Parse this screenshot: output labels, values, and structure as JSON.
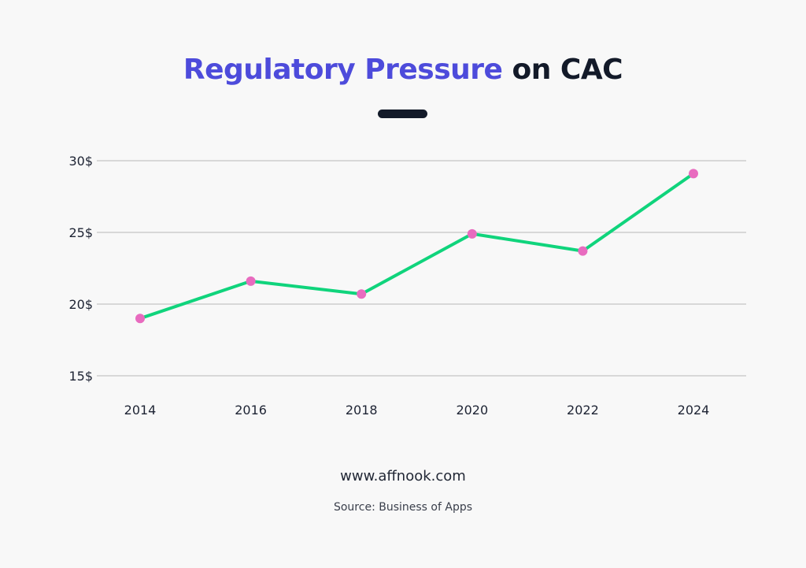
{
  "title": {
    "accent": "Regulatory Pressure",
    "rest": " on CAC"
  },
  "chart_data": {
    "type": "line",
    "x": [
      "2014",
      "2016",
      "2018",
      "2020",
      "2022",
      "2024"
    ],
    "values": [
      19,
      21.6,
      20.7,
      24.9,
      23.7,
      29.1
    ],
    "yticks": [
      "15$",
      "20$",
      "25$",
      "30$"
    ],
    "ytick_values": [
      15,
      20,
      25,
      30
    ],
    "ylim": [
      15,
      30
    ],
    "grid": true,
    "line_color": "#10d47c",
    "marker_color": "#e86bbf",
    "grid_color": "#c4c4c4"
  },
  "footer": {
    "website": "www.affnook.com",
    "source": "Source: Business of Apps"
  },
  "colors": {
    "title_accent": "#4d4bdb",
    "title_dark": "#131a29",
    "background": "#f8f8f8"
  }
}
